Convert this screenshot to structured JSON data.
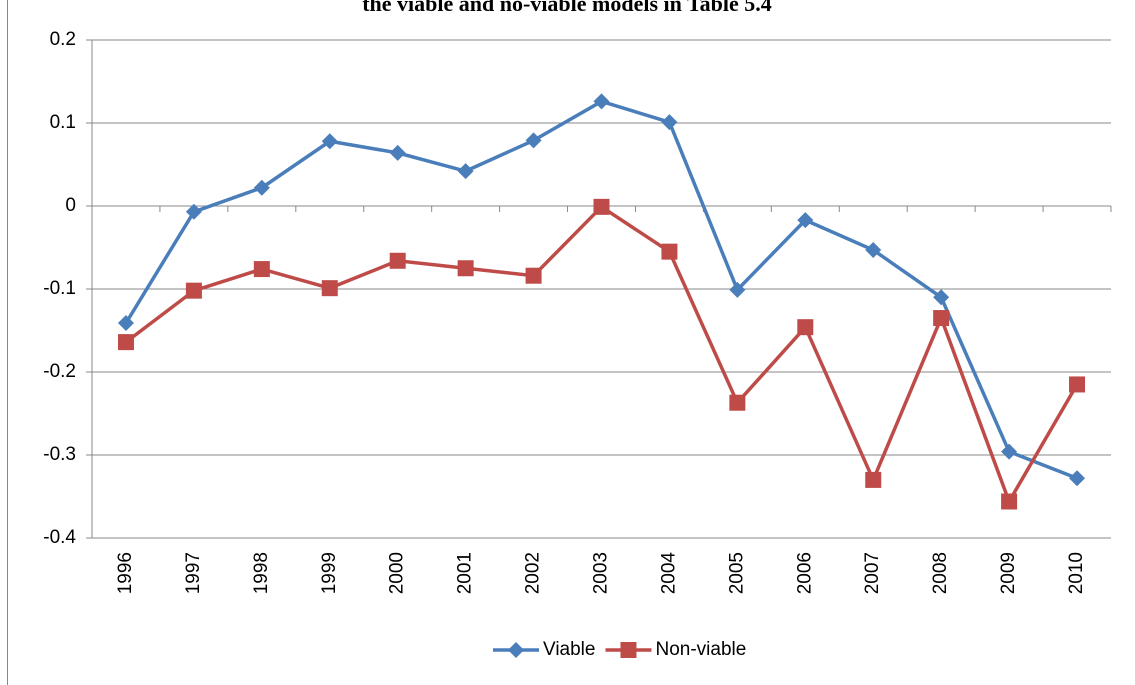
{
  "chart_data": {
    "type": "line",
    "title": "the viable and no-viable models in Table 5.4",
    "categories": [
      "1996",
      "1997",
      "1998",
      "1999",
      "2000",
      "2001",
      "2002",
      "2003",
      "2004",
      "2005",
      "2006",
      "2007",
      "2008",
      "2009",
      "2010"
    ],
    "series": [
      {
        "name": "Viable",
        "color": "#4a7ebb",
        "marker": "diamond",
        "values": [
          -0.141,
          -0.007,
          0.022,
          0.078,
          0.064,
          0.042,
          0.079,
          0.126,
          0.101,
          -0.101,
          -0.017,
          -0.053,
          -0.11,
          -0.296,
          -0.328
        ]
      },
      {
        "name": "Non-viable",
        "color": "#be4b48",
        "marker": "square",
        "values": [
          -0.164,
          -0.102,
          -0.076,
          -0.099,
          -0.066,
          -0.075,
          -0.084,
          -0.001,
          -0.055,
          -0.237,
          -0.146,
          -0.33,
          -0.135,
          -0.356,
          -0.215
        ]
      }
    ],
    "ylim": [
      -0.4,
      0.2
    ],
    "yticks": [
      -0.4,
      -0.3,
      -0.2,
      -0.1,
      0,
      0.1,
      0.2
    ],
    "grid": true,
    "legend": "bottom"
  }
}
